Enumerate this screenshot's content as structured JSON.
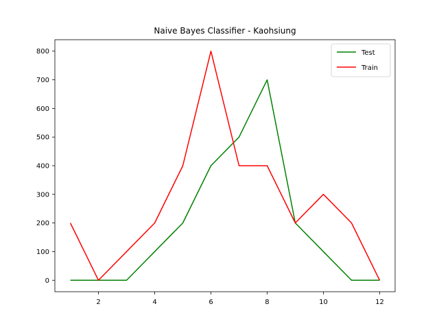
{
  "chart_data": {
    "type": "line",
    "title": "Naive Bayes Classifier - Kaohsiung",
    "xlabel": "",
    "ylabel": "",
    "x": [
      1,
      2,
      3,
      4,
      5,
      6,
      7,
      8,
      9,
      10,
      11,
      12
    ],
    "series": [
      {
        "name": "Test",
        "color": "#008000",
        "values": [
          0,
          0,
          0,
          100,
          200,
          400,
          500,
          700,
          200,
          100,
          0,
          0
        ]
      },
      {
        "name": "Train",
        "color": "#ff0000",
        "values": [
          200,
          0,
          100,
          200,
          400,
          800,
          400,
          400,
          200,
          300,
          200,
          0
        ]
      }
    ],
    "xlim": [
      0.45,
      12.55
    ],
    "ylim": [
      -40,
      840
    ],
    "xticks": [
      2,
      4,
      6,
      8,
      10,
      12
    ],
    "yticks": [
      0,
      100,
      200,
      300,
      400,
      500,
      600,
      700,
      800
    ],
    "grid": false,
    "legend_position": "top-right"
  }
}
